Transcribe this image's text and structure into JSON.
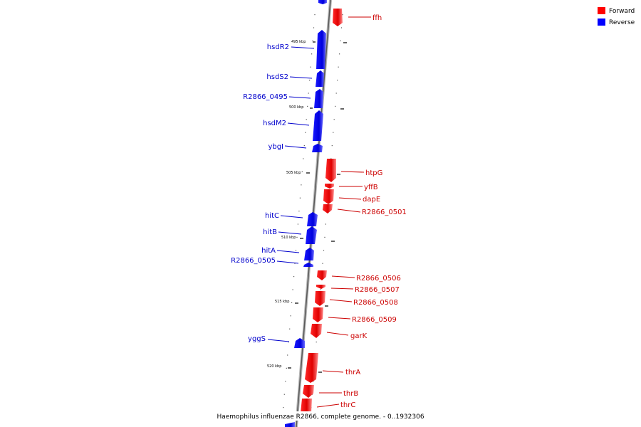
{
  "legend": {
    "items": [
      {
        "label": "Forward",
        "color": "#ff0000"
      },
      {
        "label": "Reverse",
        "color": "#0000ff"
      }
    ]
  },
  "caption": "Haemophilus influenzae R2866, complete genome. - 0..1932306",
  "ticks": [
    "495 kbp",
    "500 kbp",
    "505 kbp",
    "510 kbp",
    "515 kbp",
    "520 kbp"
  ],
  "genes": [
    {
      "name": "ffh",
      "strand": "forward"
    },
    {
      "name": "hsdR2",
      "strand": "reverse"
    },
    {
      "name": "hsdS2",
      "strand": "reverse"
    },
    {
      "name": "R2866_0495",
      "strand": "reverse"
    },
    {
      "name": "hsdM2",
      "strand": "reverse"
    },
    {
      "name": "ybgI",
      "strand": "reverse"
    },
    {
      "name": "htpG",
      "strand": "forward"
    },
    {
      "name": "yffB",
      "strand": "forward"
    },
    {
      "name": "dapE",
      "strand": "forward"
    },
    {
      "name": "R2866_0501",
      "strand": "forward"
    },
    {
      "name": "hitC",
      "strand": "reverse"
    },
    {
      "name": "hitB",
      "strand": "reverse"
    },
    {
      "name": "hitA",
      "strand": "reverse"
    },
    {
      "name": "R2866_0505",
      "strand": "reverse"
    },
    {
      "name": "R2866_0506",
      "strand": "forward"
    },
    {
      "name": "R2866_0507",
      "strand": "forward"
    },
    {
      "name": "R2866_0508",
      "strand": "forward"
    },
    {
      "name": "R2866_0509",
      "strand": "forward"
    },
    {
      "name": "garK",
      "strand": "forward"
    },
    {
      "name": "yggS",
      "strand": "reverse"
    },
    {
      "name": "thrA",
      "strand": "forward"
    },
    {
      "name": "thrB",
      "strand": "forward"
    },
    {
      "name": "thrC",
      "strand": "forward"
    }
  ]
}
